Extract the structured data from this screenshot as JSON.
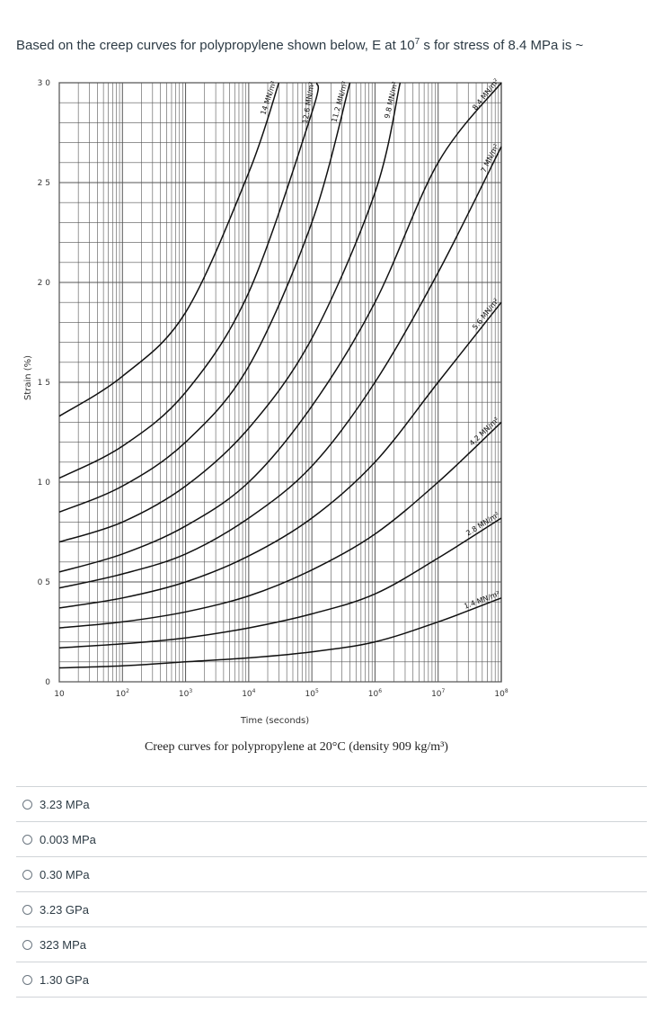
{
  "question": {
    "prefix": "Based on the creep curves for polypropylene shown below, E at 10",
    "exponent": "7",
    "suffix": " s for stress of 8.4 MPa is ~"
  },
  "chart_data": {
    "type": "line",
    "xscale": "log",
    "xlim": [
      10,
      100000000
    ],
    "ylim": [
      0,
      3.0
    ],
    "ylabel": "Strain (%)",
    "xlabel": "Time (seconds)",
    "caption": "Creep curves for polypropylene at 20°C (density 909 kg/m³)",
    "yticks": [
      {
        "value": 0,
        "label": "0"
      },
      {
        "value": 0.5,
        "label": "0 5"
      },
      {
        "value": 1.0,
        "label": "1 0"
      },
      {
        "value": 1.5,
        "label": "1 5"
      },
      {
        "value": 2.0,
        "label": "2 0"
      },
      {
        "value": 2.5,
        "label": "2 5"
      },
      {
        "value": 3.0,
        "label": "3 0"
      }
    ],
    "xticks": [
      {
        "value": 10,
        "base": "10",
        "exp": ""
      },
      {
        "value": 100,
        "base": "10",
        "exp": "2"
      },
      {
        "value": 1000,
        "base": "10",
        "exp": "3"
      },
      {
        "value": 10000,
        "base": "10",
        "exp": "4"
      },
      {
        "value": 100000,
        "base": "10",
        "exp": "5"
      },
      {
        "value": 1000000,
        "base": "10",
        "exp": "6"
      },
      {
        "value": 10000000,
        "base": "10",
        "exp": "7"
      },
      {
        "value": 100000000,
        "base": "10",
        "exp": "8"
      }
    ],
    "series": [
      {
        "name": "14 MN/m2",
        "label": "14 MN/m²",
        "x": [
          10,
          100,
          1000,
          10000,
          30000
        ],
        "y": [
          1.33,
          1.53,
          1.85,
          2.55,
          3.0
        ]
      },
      {
        "name": "12.6 MN/m2",
        "label": "12.6 MN/m²",
        "x": [
          10,
          100,
          1000,
          10000,
          100000,
          120000
        ],
        "y": [
          1.02,
          1.18,
          1.45,
          1.95,
          2.85,
          3.0
        ]
      },
      {
        "name": "11.2 MN/m2",
        "label": "11.2 MN/m²",
        "x": [
          10,
          100,
          1000,
          10000,
          100000,
          400000
        ],
        "y": [
          0.85,
          0.98,
          1.2,
          1.58,
          2.3,
          3.0
        ]
      },
      {
        "name": "9.8 MN/m2",
        "label": "9.8 MN/m²",
        "x": [
          10,
          100,
          1000,
          10000,
          100000,
          1000000,
          2500000
        ],
        "y": [
          0.7,
          0.8,
          0.98,
          1.27,
          1.72,
          2.45,
          3.0
        ]
      },
      {
        "name": "8.4 MN/m2",
        "label": "8.4 MN/m²",
        "x": [
          10,
          100,
          1000,
          10000,
          100000,
          1000000,
          10000000,
          100000000
        ],
        "y": [
          0.55,
          0.64,
          0.78,
          1.0,
          1.38,
          1.9,
          2.6,
          3.0
        ]
      },
      {
        "name": "7 MN/m2",
        "label": "7 MN/m²",
        "x": [
          10,
          100,
          1000,
          10000,
          100000,
          1000000,
          10000000,
          100000000
        ],
        "y": [
          0.47,
          0.54,
          0.64,
          0.82,
          1.08,
          1.5,
          2.05,
          2.68
        ]
      },
      {
        "name": "5.6 MN/m2",
        "label": "5.6 MN/m²",
        "x": [
          10,
          100,
          1000,
          10000,
          100000,
          1000000,
          10000000,
          100000000
        ],
        "y": [
          0.37,
          0.42,
          0.5,
          0.63,
          0.82,
          1.1,
          1.5,
          1.9
        ]
      },
      {
        "name": "4.2 MN/m2",
        "label": "4.2 MN/m²",
        "x": [
          10,
          100,
          1000,
          10000,
          100000,
          1000000,
          10000000,
          100000000
        ],
        "y": [
          0.27,
          0.3,
          0.35,
          0.43,
          0.56,
          0.74,
          1.0,
          1.3
        ]
      },
      {
        "name": "2.8 MN/m2",
        "label": "2.8 MN/m²",
        "x": [
          10,
          100,
          1000,
          10000,
          100000,
          1000000,
          10000000,
          100000000
        ],
        "y": [
          0.17,
          0.19,
          0.22,
          0.27,
          0.34,
          0.44,
          0.62,
          0.82
        ]
      },
      {
        "name": "1.4 MN/m2",
        "label": "1.4 MN/m²",
        "x": [
          10,
          100,
          1000,
          10000,
          100000,
          1000000,
          10000000,
          100000000
        ],
        "y": [
          0.07,
          0.08,
          0.1,
          0.12,
          0.15,
          0.2,
          0.3,
          0.42
        ]
      }
    ]
  },
  "options": [
    {
      "label": "3.23 MPa"
    },
    {
      "label": "0.003 MPa"
    },
    {
      "label": "0.30 MPa"
    },
    {
      "label": "3.23 GPa"
    },
    {
      "label": "323 MPa"
    },
    {
      "label": "1.30 GPa"
    }
  ]
}
